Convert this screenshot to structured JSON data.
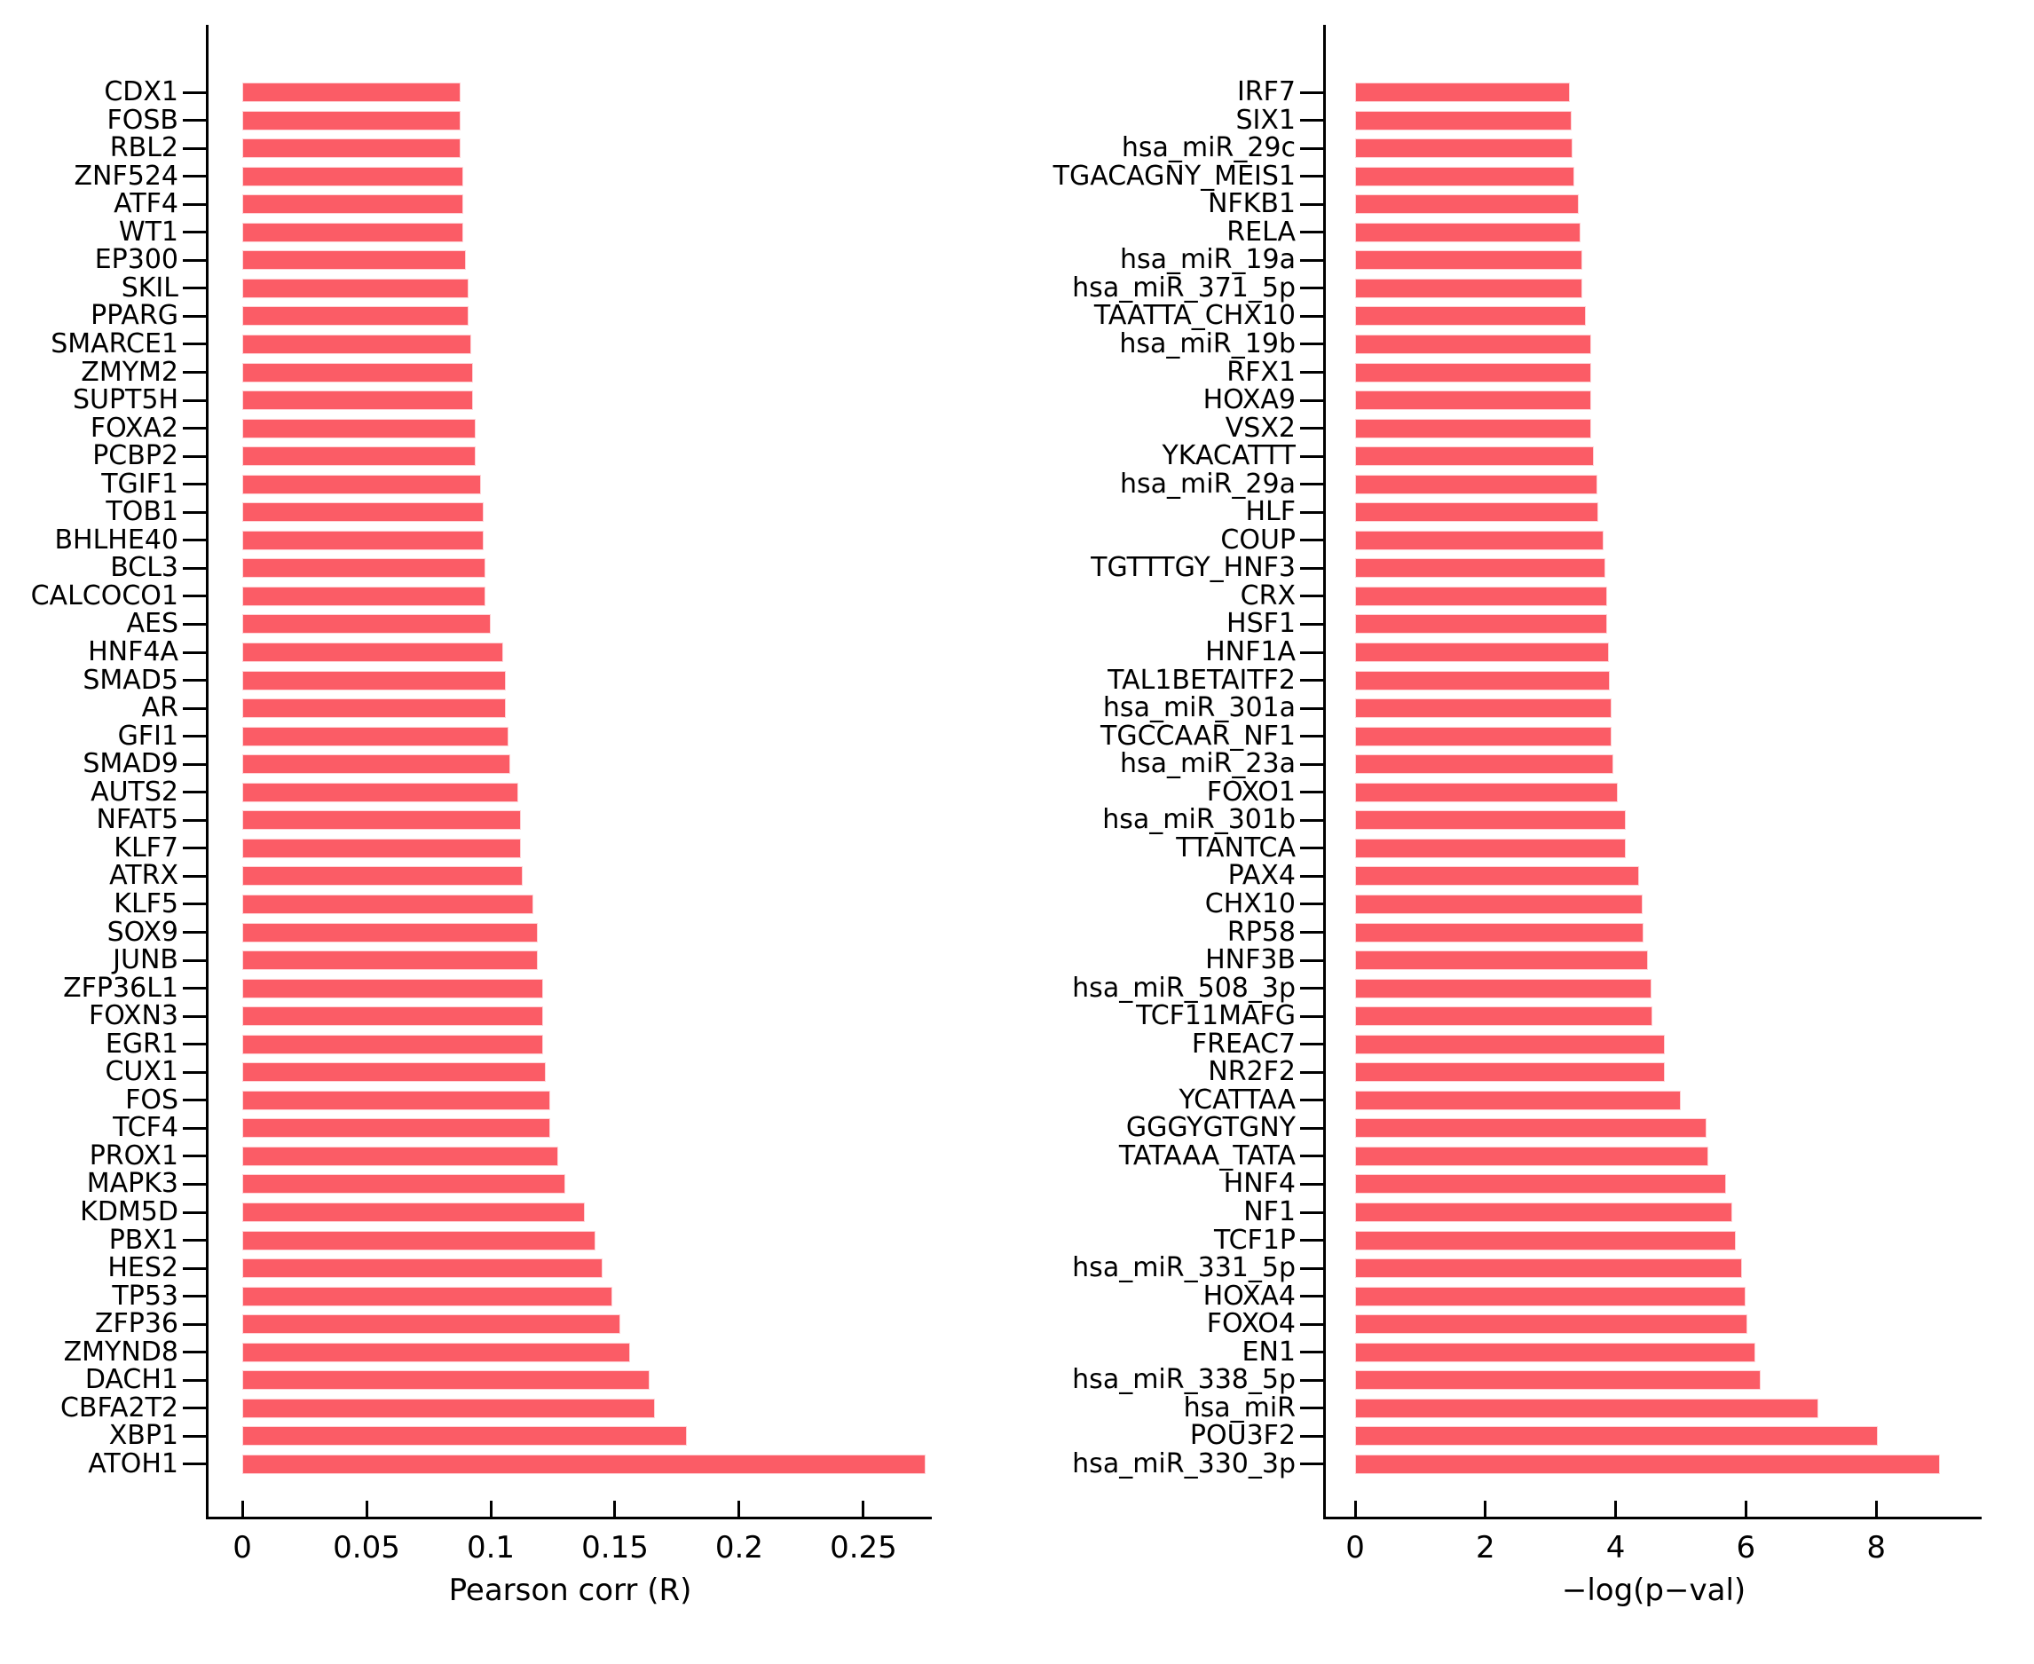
{
  "figure": {
    "background": "#ffffff",
    "bar_color": "#fb5c66"
  },
  "chart_data": [
    {
      "id": "pearson-correlation-chart",
      "type": "bar",
      "orientation": "horizontal",
      "title": "",
      "xlabel": "Pearson corr (R)",
      "ylabel": "",
      "bar_color": "#fb5c66",
      "grid": false,
      "legend": false,
      "xlim": [
        -0.0136,
        0.2786
      ],
      "xticks": [
        0,
        0.05,
        0.1,
        0.15,
        0.2,
        0.25
      ],
      "xtick_labels": [
        "0",
        "0.05",
        "0.1",
        "0.15",
        "0.2",
        "0.25"
      ],
      "categories": [
        "CDX1",
        "FOSB",
        "RBL2",
        "ZNF524",
        "ATF4",
        "WT1",
        "EP300",
        "SKIL",
        "PPARG",
        "SMARCE1",
        "ZMYM2",
        "SUPT5H",
        "FOXA2",
        "PCBP2",
        "TGIF1",
        "TOB1",
        "BHLHE40",
        "BCL3",
        "CALCOCO1",
        "AES",
        "HNF4A",
        "SMAD5",
        "AR",
        "GFI1",
        "SMAD9",
        "AUTS2",
        "NFAT5",
        "KLF7",
        "ATRX",
        "KLF5",
        "SOX9",
        "JUNB",
        "ZFP36L1",
        "FOXN3",
        "EGR1",
        "CUX1",
        "FOS",
        "TCF4",
        "PROX1",
        "MAPK3",
        "KDM5D",
        "PBX1",
        "HES2",
        "TP53",
        "ZFP36",
        "ZMYND8",
        "DACH1",
        "CBFA2T2",
        "XBP1",
        "ATOH1"
      ],
      "values": [
        0.088,
        0.088,
        0.088,
        0.089,
        0.089,
        0.089,
        0.09,
        0.091,
        0.091,
        0.092,
        0.093,
        0.093,
        0.094,
        0.094,
        0.096,
        0.097,
        0.097,
        0.098,
        0.098,
        0.1,
        0.105,
        0.106,
        0.106,
        0.107,
        0.108,
        0.111,
        0.112,
        0.112,
        0.113,
        0.117,
        0.119,
        0.119,
        0.121,
        0.121,
        0.121,
        0.122,
        0.124,
        0.124,
        0.127,
        0.13,
        0.138,
        0.142,
        0.145,
        0.149,
        0.152,
        0.156,
        0.164,
        0.166,
        0.179,
        0.275
      ]
    },
    {
      "id": "log-pval-chart",
      "type": "bar",
      "orientation": "horizontal",
      "title": "",
      "xlabel": "−log(p−val)",
      "ylabel": "",
      "bar_color": "#fb5c66",
      "grid": false,
      "legend": false,
      "xlim": [
        -0.45,
        9.66
      ],
      "xticks": [
        0,
        2,
        4,
        6,
        8
      ],
      "xtick_labels": [
        "0",
        "2",
        "4",
        "6",
        "8"
      ],
      "categories": [
        "IRF7",
        "SIX1",
        "hsa_miR_29c",
        "TGACAGNY_MEIS1",
        "NFKB1",
        "RELA",
        "hsa_miR_19a",
        "hsa_miR_371_5p",
        "TAATTA_CHX10",
        "hsa_miR_19b",
        "RFX1",
        "HOXA9",
        "VSX2",
        "YKACATTT",
        "hsa_miR_29a",
        "HLF",
        "COUP",
        "TGTTTGY_HNF3",
        "CRX",
        "HSF1",
        "HNF1A",
        "TAL1BETAITF2",
        "hsa_miR_301a",
        "TGCCAAR_NF1",
        "hsa_miR_23a",
        "FOXO1",
        "hsa_miR_301b",
        "TTANTCA",
        "PAX4",
        "CHX10",
        "RP58",
        "HNF3B",
        "hsa_miR_508_3p",
        "TCF11MAFG",
        "FREAC7",
        "NR2F2",
        "YCATTAA",
        "GGGYGTGNY",
        "TATAAA_TATA",
        "HNF4",
        "NF1",
        "TCF1P",
        "hsa_miR_331_5p",
        "HOXA4",
        "FOXO4",
        "EN1",
        "hsa_miR_338_5p",
        "hsa_miR",
        "POU3F2",
        "hsa_miR_330_3p"
      ],
      "values": [
        3.3,
        3.33,
        3.34,
        3.36,
        3.44,
        3.46,
        3.49,
        3.49,
        3.54,
        3.62,
        3.62,
        3.63,
        3.63,
        3.66,
        3.72,
        3.73,
        3.82,
        3.84,
        3.87,
        3.87,
        3.9,
        3.91,
        3.94,
        3.94,
        3.96,
        4.03,
        4.15,
        4.16,
        4.36,
        4.41,
        4.43,
        4.5,
        4.55,
        4.57,
        4.75,
        4.76,
        5.0,
        5.4,
        5.42,
        5.7,
        5.79,
        5.85,
        5.94,
        6.0,
        6.02,
        6.14,
        6.23,
        7.11,
        8.02,
        8.98
      ]
    }
  ]
}
